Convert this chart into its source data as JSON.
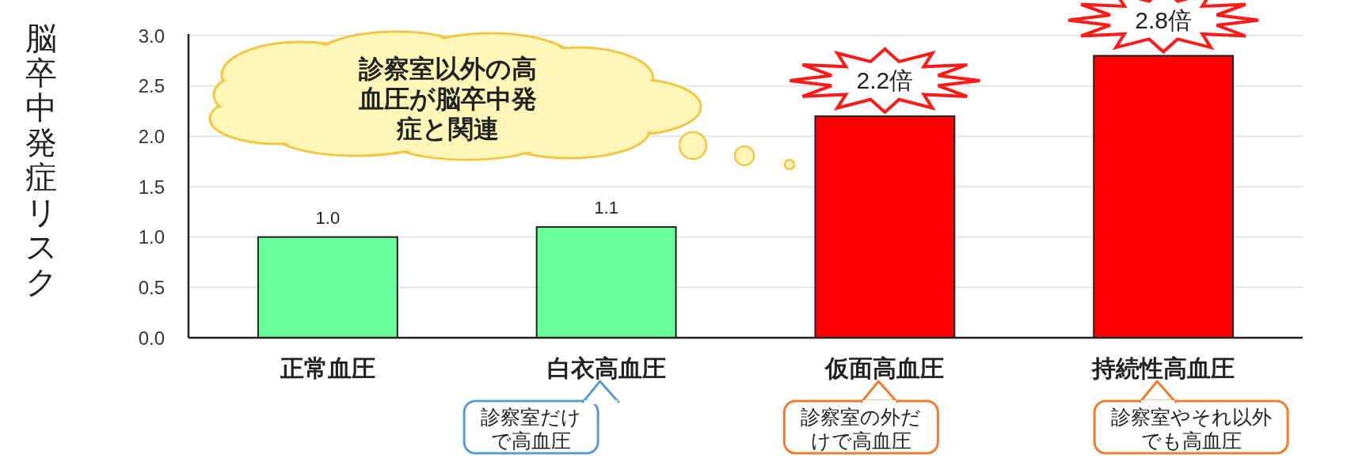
{
  "chart_data": {
    "type": "bar",
    "ylabel": "脳卒中発症リスク",
    "categories": [
      "正常血圧",
      "白衣高血圧",
      "仮面高血圧",
      "持続性高血圧"
    ],
    "values": [
      1.0,
      1.1,
      2.2,
      2.8
    ],
    "colors": [
      "#66ff99",
      "#66ff99",
      "#ff0000",
      "#ff0000"
    ],
    "value_labels": [
      "1.0",
      "1.1",
      "2.2倍",
      "2.8倍"
    ],
    "ylim": [
      0,
      3
    ],
    "yticks": [
      {
        "value": 0,
        "label": "0.0"
      },
      {
        "value": 0.5,
        "label": "0.5"
      },
      {
        "value": 1,
        "label": "1.0"
      },
      {
        "value": 1.5,
        "label": "1.5"
      },
      {
        "value": 2,
        "label": "2.0"
      },
      {
        "value": 2.5,
        "label": "2.5"
      },
      {
        "value": 3,
        "label": "3.0"
      }
    ],
    "grid": "y",
    "annotations": [
      "診察室以外の高血圧が脳卒中発症と関連",
      "診察室だけで高血圧",
      "診察室の外だけで高血圧",
      "診察室やそれ以外でも高血圧"
    ]
  }
}
